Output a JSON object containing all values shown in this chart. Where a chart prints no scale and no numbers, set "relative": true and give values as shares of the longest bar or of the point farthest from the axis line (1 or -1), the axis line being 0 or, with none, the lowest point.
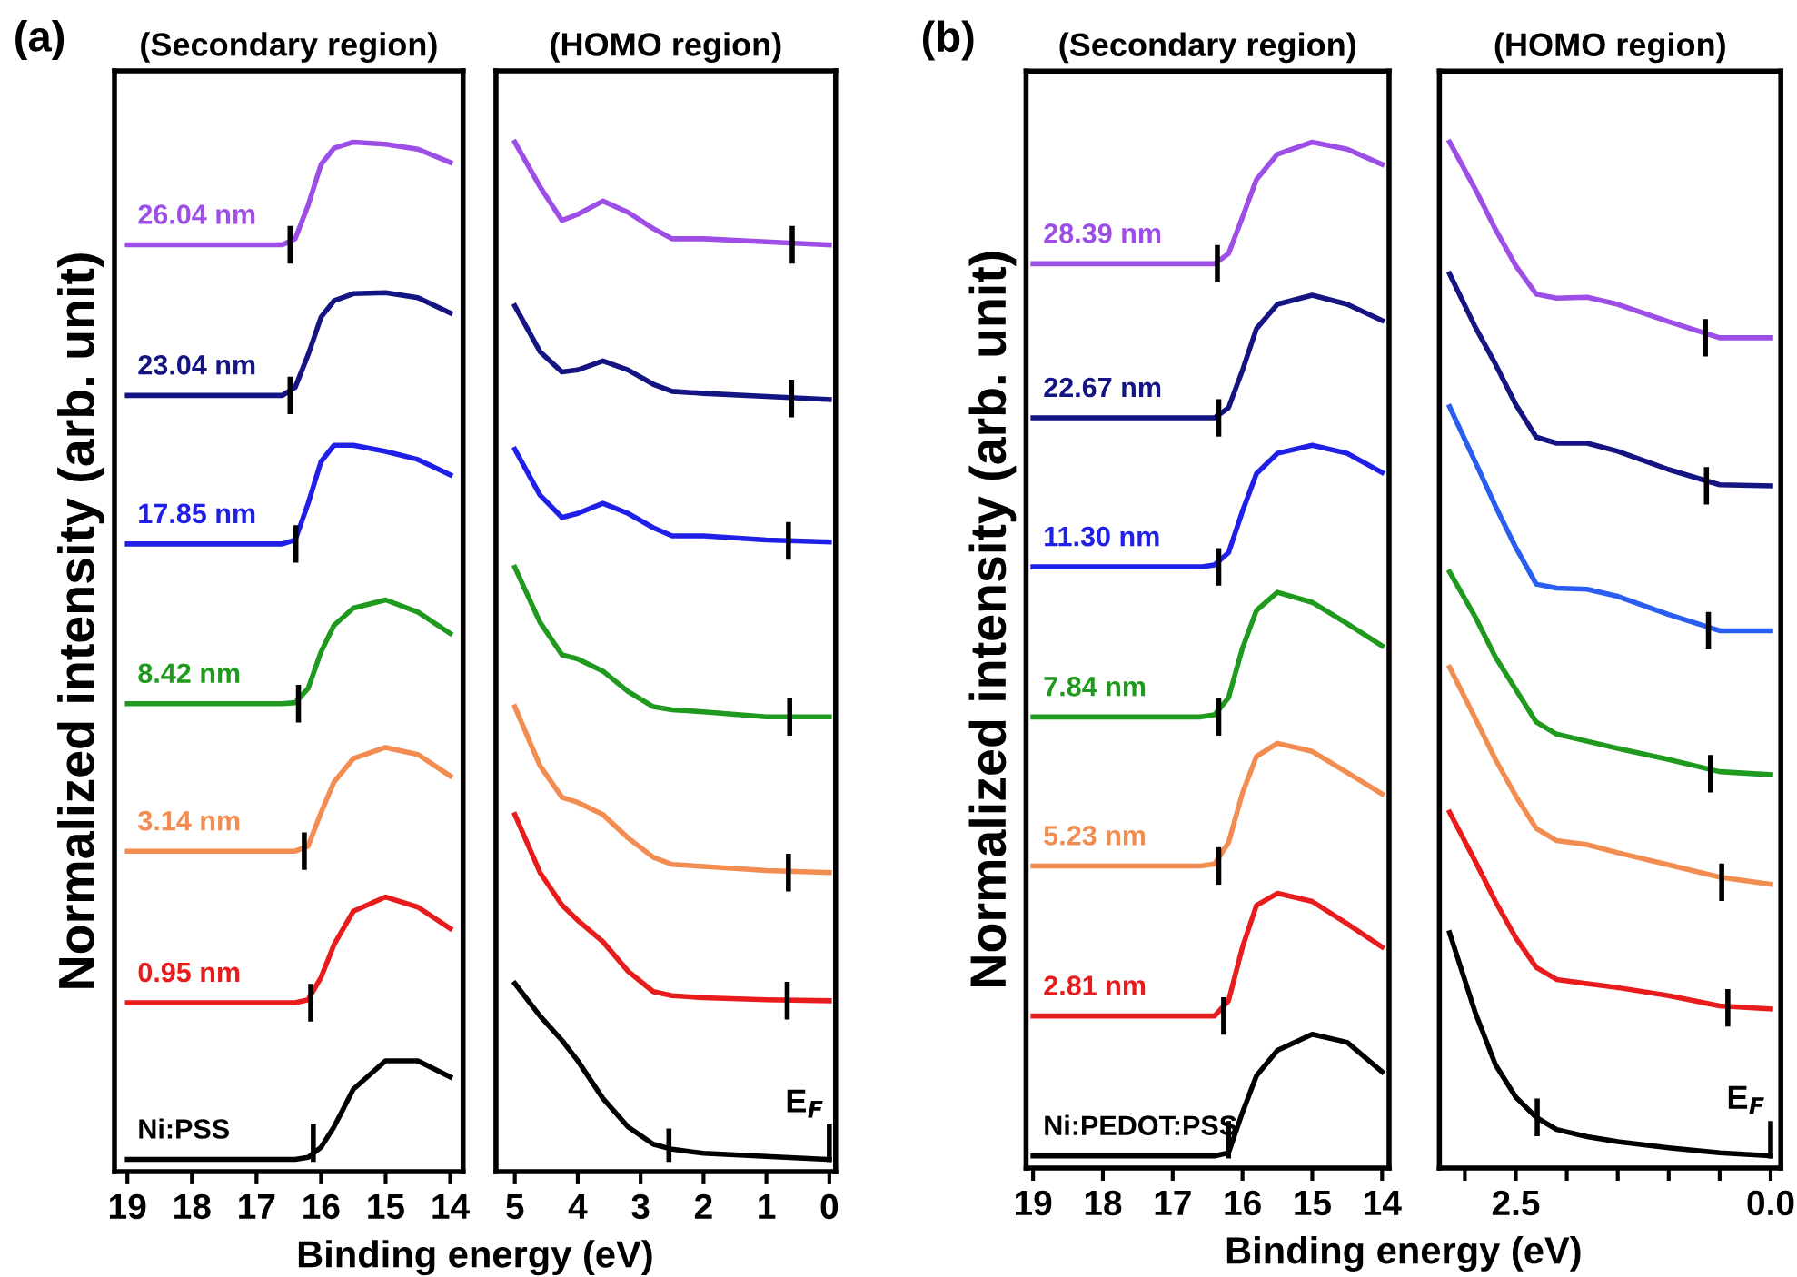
{
  "chart_data": [
    {
      "type": "line",
      "title": "(Secondary region)",
      "xlabel": "Binding energy (eV)",
      "ylabel": "Normalized intensity (arb. unit)",
      "annotations": [
        "(a)"
      ],
      "relative": true,
      "tick_labels": "x",
      "xlim": [
        19.2,
        13.8
      ],
      "xticks": [
        19,
        18,
        17,
        16,
        15,
        14
      ],
      "x": [
        19.0,
        16.6,
        16.4,
        16.2,
        16.0,
        15.8,
        15.5,
        15.0,
        14.5,
        14.0
      ],
      "series": [
        {
          "name": "26.04 nm",
          "color": "#9d4ee6",
          "values": [
            0.899,
            0.899,
            0.905,
            0.938,
            0.978,
            0.994,
            1.0,
            0.998,
            0.993,
            0.98
          ]
        },
        {
          "name": "23.04 nm",
          "color": "#141482",
          "values": [
            0.751,
            0.751,
            0.759,
            0.791,
            0.828,
            0.844,
            0.851,
            0.852,
            0.847,
            0.832
          ]
        },
        {
          "name": "17.85 nm",
          "color": "#1f1fe8",
          "values": [
            0.605,
            0.605,
            0.609,
            0.645,
            0.686,
            0.702,
            0.702,
            0.696,
            0.688,
            0.673
          ]
        },
        {
          "name": "8.42 nm",
          "color": "#1f9a1f",
          "values": [
            0.448,
            0.448,
            0.449,
            0.463,
            0.499,
            0.525,
            0.542,
            0.55,
            0.538,
            0.517
          ]
        },
        {
          "name": "3.14 nm",
          "color": "#f28c50",
          "values": [
            0.303,
            0.303,
            0.303,
            0.308,
            0.341,
            0.371,
            0.394,
            0.405,
            0.398,
            0.377
          ]
        },
        {
          "name": "0.95 nm",
          "color": "#e81c1c",
          "values": [
            0.154,
            0.154,
            0.154,
            0.157,
            0.179,
            0.211,
            0.244,
            0.258,
            0.248,
            0.227
          ]
        },
        {
          "name": "Ni:PSS",
          "color": "#000000",
          "values": [
            0.0,
            0.0,
            0.0,
            0.002,
            0.012,
            0.032,
            0.069,
            0.097,
            0.097,
            0.081
          ]
        },
        {
          "color": "#000000",
          "x": [
            16.48,
            16.48
          ],
          "values": [
            0.883,
            0.915
          ]
        },
        {
          "color": "#000000",
          "x": [
            16.48,
            16.48
          ],
          "values": [
            0.735,
            0.767
          ]
        },
        {
          "color": "#000000",
          "x": [
            16.39,
            16.39
          ],
          "values": [
            0.589,
            0.621
          ]
        },
        {
          "color": "#000000",
          "x": [
            16.35,
            16.35
          ],
          "values": [
            0.432,
            0.464
          ]
        },
        {
          "color": "#000000",
          "x": [
            16.26,
            16.26
          ],
          "values": [
            0.287,
            0.319
          ]
        },
        {
          "color": "#000000",
          "x": [
            16.16,
            16.16
          ],
          "values": [
            0.138,
            0.17
          ]
        },
        {
          "color": "#000000",
          "x": [
            16.12,
            16.12
          ],
          "values": [
            0.0,
            0.032
          ]
        }
      ]
    },
    {
      "type": "line",
      "title": "(HOMO region)",
      "annotations": [
        {
          "text": "E$_{F}$",
          "x": 0.0,
          "y": 0.0
        }
      ],
      "relative": true,
      "tick_labels": "x",
      "xlim": [
        5.3,
        -0.1
      ],
      "xticks": [
        5,
        4,
        3,
        2,
        1,
        0
      ],
      "x": [
        5.0,
        4.6,
        4.25,
        4.0,
        3.6,
        3.2,
        2.8,
        2.5,
        2.0,
        1.0,
        0.0
      ],
      "series": [
        {
          "color": "#9d4ee6",
          "values": [
            1.0,
            0.956,
            0.923,
            0.929,
            0.942,
            0.931,
            0.915,
            0.905,
            0.905,
            0.902,
            0.899
          ]
        },
        {
          "color": "#141482",
          "values": [
            0.839,
            0.794,
            0.774,
            0.776,
            0.785,
            0.776,
            0.762,
            0.755,
            0.753,
            0.75,
            0.747
          ]
        },
        {
          "color": "#1f1fe8",
          "values": [
            0.698,
            0.653,
            0.631,
            0.635,
            0.645,
            0.635,
            0.621,
            0.613,
            0.613,
            0.609,
            0.607
          ]
        },
        {
          "color": "#1f9a1f",
          "values": [
            0.582,
            0.528,
            0.496,
            0.492,
            0.48,
            0.46,
            0.445,
            0.442,
            0.44,
            0.435,
            0.435
          ]
        },
        {
          "color": "#f28c50",
          "values": [
            0.445,
            0.387,
            0.356,
            0.351,
            0.339,
            0.316,
            0.297,
            0.29,
            0.288,
            0.284,
            0.282
          ]
        },
        {
          "color": "#e81c1c",
          "values": [
            0.339,
            0.282,
            0.25,
            0.235,
            0.214,
            0.185,
            0.165,
            0.161,
            0.159,
            0.157,
            0.156
          ]
        },
        {
          "color": "#000000",
          "values": [
            0.173,
            0.141,
            0.117,
            0.097,
            0.06,
            0.032,
            0.015,
            0.01,
            0.006,
            0.003,
            0.0
          ]
        },
        {
          "color": "#000000",
          "x": [
            0.59,
            0.59
          ],
          "values": [
            0.883,
            0.915
          ]
        },
        {
          "color": "#000000",
          "x": [
            0.6,
            0.6
          ],
          "values": [
            0.732,
            0.764
          ]
        },
        {
          "color": "#000000",
          "x": [
            0.65,
            0.65
          ],
          "values": [
            0.592,
            0.624
          ]
        },
        {
          "color": "#000000",
          "x": [
            0.63,
            0.63
          ],
          "values": [
            0.419,
            0.451
          ]
        },
        {
          "color": "#000000",
          "x": [
            0.65,
            0.65
          ],
          "values": [
            0.266,
            0.298
          ]
        },
        {
          "color": "#000000",
          "x": [
            0.67,
            0.67
          ],
          "values": [
            0.14,
            0.172
          ]
        },
        {
          "color": "#000000",
          "x": [
            2.55,
            2.55
          ],
          "values": [
            0.0,
            0.028
          ]
        },
        {
          "color": "#000000",
          "x": [
            0.0,
            0.0
          ],
          "values": [
            0.0,
            0.032
          ]
        }
      ]
    },
    {
      "type": "line",
      "title": "(Secondary region)",
      "xlabel": "Binding energy (eV)",
      "ylabel": "Normalized intensity (arb. unit)",
      "annotations": [
        "(b)"
      ],
      "relative": true,
      "tick_labels": "x",
      "xlim": [
        19.1,
        13.9
      ],
      "xticks": [
        19,
        18,
        17,
        16,
        15,
        14
      ],
      "x": [
        19.0,
        16.6,
        16.4,
        16.2,
        16.0,
        15.8,
        15.5,
        15.0,
        14.5,
        14.0
      ],
      "series": [
        {
          "name": "28.39 nm",
          "color": "#9d4ee6",
          "values": [
            0.88,
            0.88,
            0.88,
            0.89,
            0.926,
            0.963,
            0.988,
            1.0,
            0.993,
            0.978
          ]
        },
        {
          "name": "22.67 nm",
          "color": "#141482",
          "values": [
            0.728,
            0.728,
            0.728,
            0.738,
            0.775,
            0.816,
            0.84,
            0.849,
            0.84,
            0.824
          ]
        },
        {
          "name": "11.30 nm",
          "color": "#1f1fe8",
          "values": [
            0.581,
            0.581,
            0.583,
            0.595,
            0.636,
            0.673,
            0.693,
            0.701,
            0.693,
            0.674
          ]
        },
        {
          "name": "7.84 nm",
          "color": "#1f9a1f",
          "values": [
            0.433,
            0.433,
            0.435,
            0.452,
            0.501,
            0.538,
            0.556,
            0.546,
            0.525,
            0.503
          ]
        },
        {
          "name": "5.23 nm",
          "color": "#f28c50",
          "values": [
            0.286,
            0.286,
            0.288,
            0.309,
            0.358,
            0.394,
            0.407,
            0.399,
            0.378,
            0.357
          ]
        },
        {
          "name": "2.81 nm",
          "color": "#e81c1c",
          "values": [
            0.138,
            0.138,
            0.138,
            0.153,
            0.206,
            0.247,
            0.259,
            0.251,
            0.229,
            0.206
          ]
        },
        {
          "name": "Ni:PEDOT:PSS",
          "color": "#000000",
          "values": [
            0.0,
            0.0,
            0.0,
            0.003,
            0.043,
            0.079,
            0.104,
            0.12,
            0.112,
            0.083
          ]
        },
        {
          "color": "#000000",
          "x": [
            16.36,
            16.36
          ],
          "values": [
            0.864,
            0.896
          ]
        },
        {
          "color": "#000000",
          "x": [
            16.34,
            16.34
          ],
          "values": [
            0.712,
            0.744
          ]
        },
        {
          "color": "#000000",
          "x": [
            16.34,
            16.34
          ],
          "values": [
            0.565,
            0.597
          ]
        },
        {
          "color": "#000000",
          "x": [
            16.34,
            16.34
          ],
          "values": [
            0.417,
            0.449
          ]
        },
        {
          "color": "#000000",
          "x": [
            16.34,
            16.34
          ],
          "values": [
            0.27,
            0.302
          ]
        },
        {
          "color": "#000000",
          "x": [
            16.27,
            16.27
          ],
          "values": [
            0.122,
            0.154
          ]
        },
        {
          "color": "#000000",
          "x": [
            16.2,
            16.2
          ],
          "values": [
            0.0,
            0.032
          ]
        }
      ]
    },
    {
      "type": "line",
      "title": "(HOMO region)",
      "annotations": [
        {
          "text": "E$_{F}$",
          "x": 0.0,
          "y": 0.0
        }
      ],
      "relative": true,
      "tick_labels": "x",
      "xlim": [
        3.25,
        -0.1
      ],
      "xticks": [
        {
          "value": 3.0,
          "label": null
        },
        {
          "value": 2.5,
          "label": "2.5"
        },
        {
          "value": 2.0,
          "label": null
        },
        {
          "value": 1.5,
          "label": null
        },
        {
          "value": 1.0,
          "label": null
        },
        {
          "value": 0.5,
          "label": null
        },
        {
          "value": 0.0,
          "label": "0.0"
        }
      ],
      "x": [
        3.15,
        2.9,
        2.7,
        2.5,
        2.3,
        2.1,
        1.8,
        1.5,
        1.0,
        0.5,
        0.0
      ],
      "series": [
        {
          "color": "#9d4ee6",
          "values": [
            1.0,
            0.954,
            0.914,
            0.878,
            0.85,
            0.846,
            0.847,
            0.84,
            0.823,
            0.807,
            0.807
          ]
        },
        {
          "color": "#141482",
          "values": [
            0.87,
            0.818,
            0.781,
            0.741,
            0.709,
            0.703,
            0.703,
            0.695,
            0.677,
            0.662,
            0.661
          ]
        },
        {
          "color": "#2a5ef0",
          "values": [
            0.739,
            0.685,
            0.641,
            0.6,
            0.564,
            0.56,
            0.559,
            0.552,
            0.534,
            0.518,
            0.518
          ]
        },
        {
          "color": "#1f9a1f",
          "values": [
            0.576,
            0.532,
            0.492,
            0.46,
            0.428,
            0.416,
            0.409,
            0.402,
            0.391,
            0.379,
            0.376
          ]
        },
        {
          "color": "#f28c50",
          "values": [
            0.482,
            0.432,
            0.391,
            0.355,
            0.323,
            0.311,
            0.307,
            0.299,
            0.287,
            0.275,
            0.268
          ]
        },
        {
          "color": "#e81c1c",
          "values": [
            0.339,
            0.291,
            0.251,
            0.215,
            0.186,
            0.174,
            0.17,
            0.166,
            0.158,
            0.148,
            0.145
          ]
        },
        {
          "color": "#000000",
          "values": [
            0.22,
            0.142,
            0.09,
            0.058,
            0.038,
            0.026,
            0.019,
            0.014,
            0.008,
            0.003,
            0.0
          ]
        },
        {
          "color": "#000000",
          "x": [
            0.64,
            0.64
          ],
          "values": [
            0.791,
            0.823
          ]
        },
        {
          "color": "#000000",
          "x": [
            0.63,
            0.63
          ],
          "values": [
            0.645,
            0.677
          ]
        },
        {
          "color": "#000000",
          "x": [
            0.61,
            0.61
          ],
          "values": [
            0.502,
            0.534
          ]
        },
        {
          "color": "#000000",
          "x": [
            0.59,
            0.59
          ],
          "values": [
            0.361,
            0.393
          ]
        },
        {
          "color": "#000000",
          "x": [
            0.48,
            0.48
          ],
          "values": [
            0.254,
            0.286
          ]
        },
        {
          "color": "#000000",
          "x": [
            0.42,
            0.42
          ],
          "values": [
            0.13,
            0.162
          ]
        },
        {
          "color": "#000000",
          "x": [
            2.29,
            2.29
          ],
          "values": [
            0.022,
            0.054
          ]
        },
        {
          "color": "#000000",
          "x": [
            0.0,
            0.0
          ],
          "values": [
            0.0,
            0.032
          ]
        }
      ]
    }
  ]
}
